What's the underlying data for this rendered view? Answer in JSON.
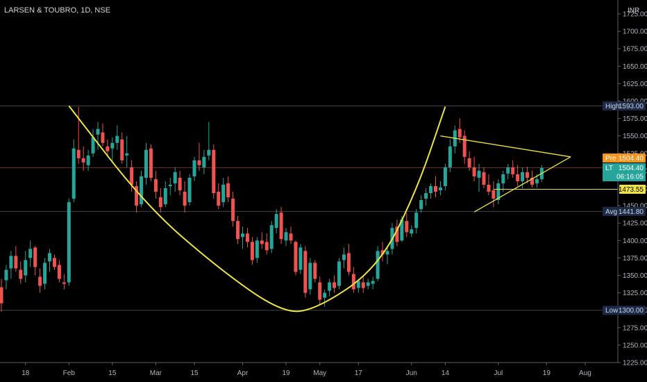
{
  "header": {
    "symbol_label": "LARSEN & TOUBRO, 1D, NSE",
    "currency": "INR"
  },
  "colors": {
    "background": "#000000",
    "up": "#26a69a",
    "down": "#ef5350",
    "drawing": "#f0e442",
    "axis_text": "#b2b5be",
    "grid_line": "#2a2e39",
    "pre_badge": "#f7931a",
    "last_badge": "#26a69a",
    "tag_badge": "#1c2a4a"
  },
  "chart_data": {
    "type": "candlestick",
    "ylim": [
      1225,
      1725
    ],
    "y_ticks": [
      1725,
      1700,
      1675,
      1650,
      1625,
      1600,
      1575,
      1550,
      1525,
      1500,
      1475,
      1450,
      1425,
      1400,
      1375,
      1350,
      1325,
      1300,
      1275,
      1250,
      1225
    ],
    "y_tick_labels": [
      "1725.00",
      "1700.00",
      "1675.00",
      "1650.00",
      "1625.00",
      "1600.00",
      "1575.00",
      "1550.00",
      "1525.00",
      "1500.00",
      "1475.00",
      "1450.00",
      "1425.00",
      "1400.00",
      "1375.00",
      "1350.00",
      "1325.00",
      "1300.00",
      "1275.00",
      "1250.00",
      "1225.00"
    ],
    "x_ticks": [
      {
        "label": "18",
        "bar": 5
      },
      {
        "label": "Feb",
        "bar": 14
      },
      {
        "label": "15",
        "bar": 23
      },
      {
        "label": "Mar",
        "bar": 32
      },
      {
        "label": "15",
        "bar": 40
      },
      {
        "label": "Apr",
        "bar": 50
      },
      {
        "label": "19",
        "bar": 59
      },
      {
        "label": "May",
        "bar": 66
      },
      {
        "label": "17",
        "bar": 74
      },
      {
        "label": "Jun",
        "bar": 85
      },
      {
        "label": "14",
        "bar": 92
      },
      {
        "label": "Jul",
        "bar": 103
      },
      {
        "label": "19",
        "bar": 113
      },
      {
        "label": "Aug",
        "bar": 121
      }
    ],
    "candles": [
      [
        1333,
        1345,
        1298,
        1310
      ],
      [
        1343,
        1365,
        1330,
        1358
      ],
      [
        1360,
        1385,
        1345,
        1378
      ],
      [
        1378,
        1392,
        1355,
        1360
      ],
      [
        1358,
        1370,
        1338,
        1345
      ],
      [
        1350,
        1385,
        1340,
        1372
      ],
      [
        1375,
        1400,
        1362,
        1388
      ],
      [
        1390,
        1392,
        1350,
        1362
      ],
      [
        1348,
        1360,
        1325,
        1335
      ],
      [
        1338,
        1375,
        1330,
        1368
      ],
      [
        1370,
        1388,
        1355,
        1382
      ],
      [
        1375,
        1380,
        1358,
        1362
      ],
      [
        1365,
        1372,
        1340,
        1345
      ],
      [
        1340,
        1352,
        1330,
        1338
      ],
      [
        1340,
        1460,
        1335,
        1455
      ],
      [
        1460,
        1545,
        1455,
        1532
      ],
      [
        1530,
        1592,
        1510,
        1518
      ],
      [
        1518,
        1535,
        1500,
        1512
      ],
      [
        1508,
        1530,
        1500,
        1522
      ],
      [
        1525,
        1560,
        1520,
        1548
      ],
      [
        1552,
        1570,
        1530,
        1560
      ],
      [
        1555,
        1568,
        1535,
        1540
      ],
      [
        1535,
        1545,
        1520,
        1528
      ],
      [
        1532,
        1548,
        1512,
        1540
      ],
      [
        1540,
        1565,
        1530,
        1550
      ],
      [
        1545,
        1555,
        1510,
        1515
      ],
      [
        1522,
        1550,
        1505,
        1525
      ],
      [
        1505,
        1515,
        1470,
        1480
      ],
      [
        1478,
        1485,
        1440,
        1450
      ],
      [
        1452,
        1500,
        1448,
        1492
      ],
      [
        1490,
        1540,
        1480,
        1530
      ],
      [
        1532,
        1538,
        1485,
        1490
      ],
      [
        1488,
        1500,
        1460,
        1470
      ],
      [
        1462,
        1475,
        1440,
        1448
      ],
      [
        1452,
        1485,
        1448,
        1475
      ],
      [
        1478,
        1490,
        1465,
        1480
      ],
      [
        1482,
        1505,
        1470,
        1498
      ],
      [
        1490,
        1500,
        1465,
        1472
      ],
      [
        1470,
        1485,
        1440,
        1450
      ],
      [
        1455,
        1495,
        1450,
        1490
      ],
      [
        1492,
        1520,
        1485,
        1515
      ],
      [
        1515,
        1540,
        1500,
        1508
      ],
      [
        1505,
        1530,
        1495,
        1520
      ],
      [
        1522,
        1570,
        1515,
        1530
      ],
      [
        1530,
        1538,
        1460,
        1468
      ],
      [
        1470,
        1482,
        1445,
        1450
      ],
      [
        1455,
        1490,
        1448,
        1480
      ],
      [
        1482,
        1492,
        1455,
        1462
      ],
      [
        1460,
        1470,
        1420,
        1428
      ],
      [
        1428,
        1435,
        1395,
        1402
      ],
      [
        1405,
        1420,
        1388,
        1410
      ],
      [
        1410,
        1418,
        1390,
        1398
      ],
      [
        1398,
        1405,
        1365,
        1372
      ],
      [
        1375,
        1405,
        1368,
        1400
      ],
      [
        1400,
        1412,
        1388,
        1395
      ],
      [
        1398,
        1410,
        1380,
        1386
      ],
      [
        1388,
        1428,
        1382,
        1422
      ],
      [
        1418,
        1445,
        1410,
        1438
      ],
      [
        1440,
        1448,
        1395,
        1402
      ],
      [
        1400,
        1418,
        1392,
        1412
      ],
      [
        1410,
        1420,
        1395,
        1400
      ],
      [
        1398,
        1400,
        1350,
        1355
      ],
      [
        1358,
        1395,
        1352,
        1390
      ],
      [
        1385,
        1392,
        1318,
        1325
      ],
      [
        1330,
        1375,
        1322,
        1368
      ],
      [
        1368,
        1372,
        1340,
        1345
      ],
      [
        1340,
        1348,
        1308,
        1315
      ],
      [
        1318,
        1330,
        1305,
        1325
      ],
      [
        1328,
        1345,
        1320,
        1340
      ],
      [
        1340,
        1350,
        1325,
        1332
      ],
      [
        1335,
        1375,
        1330,
        1370
      ],
      [
        1372,
        1390,
        1360,
        1380
      ],
      [
        1382,
        1395,
        1350,
        1355
      ],
      [
        1352,
        1362,
        1325,
        1330
      ],
      [
        1332,
        1345,
        1325,
        1342
      ],
      [
        1340,
        1350,
        1325,
        1332
      ],
      [
        1335,
        1345,
        1330,
        1340
      ],
      [
        1338,
        1348,
        1330,
        1342
      ],
      [
        1345,
        1392,
        1342,
        1385
      ],
      [
        1386,
        1398,
        1370,
        1380
      ],
      [
        1380,
        1390,
        1366,
        1385
      ],
      [
        1388,
        1425,
        1380,
        1418
      ],
      [
        1420,
        1430,
        1392,
        1398
      ],
      [
        1400,
        1435,
        1398,
        1430
      ],
      [
        1428,
        1440,
        1405,
        1412
      ],
      [
        1410,
        1422,
        1405,
        1416
      ],
      [
        1418,
        1445,
        1410,
        1440
      ],
      [
        1445,
        1465,
        1440,
        1458
      ],
      [
        1460,
        1475,
        1450,
        1468
      ],
      [
        1468,
        1482,
        1460,
        1478
      ],
      [
        1478,
        1492,
        1462,
        1470
      ],
      [
        1472,
        1485,
        1465,
        1476
      ],
      [
        1478,
        1510,
        1472,
        1505
      ],
      [
        1505,
        1545,
        1498,
        1535
      ],
      [
        1535,
        1565,
        1525,
        1558
      ],
      [
        1560,
        1575,
        1540,
        1548
      ],
      [
        1550,
        1558,
        1510,
        1520
      ],
      [
        1518,
        1528,
        1500,
        1505
      ],
      [
        1505,
        1520,
        1485,
        1492
      ],
      [
        1490,
        1510,
        1470,
        1500
      ],
      [
        1498,
        1505,
        1475,
        1480
      ],
      [
        1480,
        1495,
        1465,
        1470
      ],
      [
        1472,
        1485,
        1448,
        1460
      ],
      [
        1458,
        1488,
        1452,
        1482
      ],
      [
        1482,
        1500,
        1470,
        1495
      ],
      [
        1496,
        1510,
        1488,
        1505
      ],
      [
        1505,
        1515,
        1490,
        1495
      ],
      [
        1495,
        1508,
        1478,
        1485
      ],
      [
        1485,
        1505,
        1475,
        1498
      ],
      [
        1498,
        1506,
        1482,
        1490
      ],
      [
        1490,
        1500,
        1476,
        1480
      ],
      [
        1482,
        1495,
        1476,
        1488
      ],
      [
        1488,
        1508,
        1484,
        1504
      ]
    ],
    "price_tags": [
      {
        "label": "High",
        "price": "1593.00",
        "value": 1593
      },
      {
        "label": "Pre",
        "price": "1504.40",
        "value": 1504.4
      },
      {
        "label": "LT",
        "price": "1504.40",
        "value": 1504.4
      },
      {
        "label": "",
        "price": "1473.55",
        "value": 1473.55
      },
      {
        "label": "Avg",
        "price": "1441.80",
        "value": 1441.8
      },
      {
        "label": "Low",
        "price": "1300.00",
        "value": 1300
      }
    ],
    "countdown": "06:16:05",
    "drawings": {
      "cup_curve": [
        [
          14,
          1593
        ],
        [
          30,
          1450
        ],
        [
          45,
          1360
        ],
        [
          58,
          1297
        ],
        [
          65,
          1300
        ],
        [
          78,
          1360
        ],
        [
          86,
          1470
        ],
        [
          92,
          1592
        ]
      ],
      "triangle_upper": [
        [
          91,
          1550
        ],
        [
          118,
          1520
        ]
      ],
      "triangle_lower": [
        [
          98,
          1441
        ],
        [
          118,
          1520
        ]
      ],
      "horizontal_line": [
        [
          102,
          1473.55
        ],
        [
          128,
          1473.55
        ]
      ]
    }
  }
}
